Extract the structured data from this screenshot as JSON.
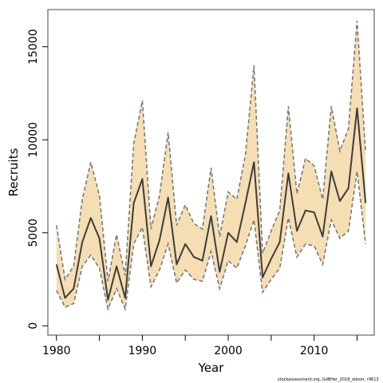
{
  "chart_data": {
    "type": "line",
    "xlabel": "Year",
    "ylabel": "Recruits",
    "xlim": [
      1979,
      2017
    ],
    "ylim": [
      -500,
      17000
    ],
    "xticks": [
      1980,
      1990,
      2000,
      2010
    ],
    "xtick_labels": [
      "1980",
      "1990",
      "2000",
      "2010"
    ],
    "xminor_ticks": [
      1985,
      1995,
      2005,
      2015
    ],
    "yticks": [
      0,
      5000,
      10000,
      15000
    ],
    "ytick_labels": [
      "0",
      "5000",
      "10000",
      "15000"
    ],
    "grid": false,
    "legend": "none",
    "x": [
      1980,
      1981,
      1982,
      1983,
      1984,
      1985,
      1986,
      1987,
      1988,
      1989,
      1990,
      1991,
      1992,
      1993,
      1994,
      1995,
      1996,
      1997,
      1998,
      1999,
      2000,
      2001,
      2002,
      2003,
      2004,
      2005,
      2006,
      2007,
      2008,
      2009,
      2010,
      2011,
      2012,
      2013,
      2014,
      2015,
      2016
    ],
    "series": [
      {
        "values": [
          3300,
          1500,
          2000,
          4500,
          5800,
          4700,
          1400,
          3200,
          1500,
          6600,
          7900,
          3200,
          4600,
          6900,
          3300,
          4400,
          3700,
          3500,
          5900,
          2900,
          5000,
          4500,
          6600,
          8800,
          2600,
          3600,
          4500,
          8200,
          5100,
          6200,
          6100,
          4800,
          8300,
          6700,
          7400,
          11700,
          6600
        ]
      }
    ],
    "intervals": {
      "upper": [
        5400,
        2500,
        3200,
        6800,
        8800,
        7000,
        2400,
        4900,
        2700,
        9800,
        12100,
        5200,
        7000,
        10400,
        5400,
        6500,
        5500,
        5200,
        8500,
        4800,
        7200,
        6800,
        9200,
        14000,
        3900,
        5100,
        6200,
        11800,
        7100,
        9000,
        8600,
        6800,
        11800,
        9400,
        10600,
        16400,
        9300
      ],
      "lower": [
        1900,
        1000,
        1200,
        3200,
        3800,
        3100,
        900,
        2000,
        900,
        4400,
        5300,
        2100,
        3000,
        4400,
        2300,
        3000,
        2500,
        2400,
        4000,
        2000,
        3500,
        3100,
        4300,
        5700,
        1800,
        2500,
        3100,
        5800,
        3700,
        4400,
        4300,
        3300,
        5700,
        4700,
        5100,
        8300,
        4400
      ]
    },
    "colors": {
      "line": "#3d3d3d",
      "band_fill": "#f5deb3",
      "band_edge": "#7a7a7a",
      "axis": "#000000"
    }
  },
  "footnote": "stockassessment.org, GdBHer_2018_oldver, r9613"
}
